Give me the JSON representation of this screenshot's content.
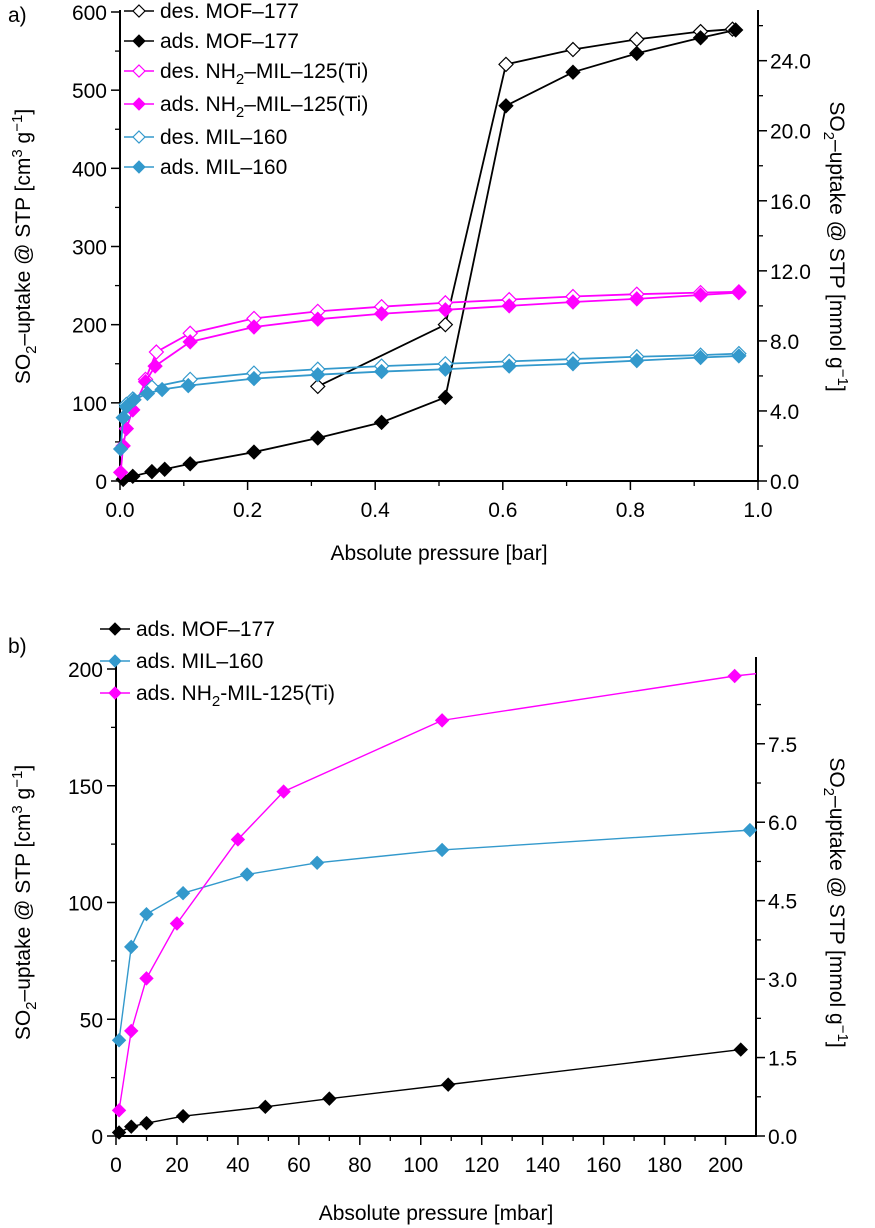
{
  "chart_data": [
    {
      "panel": "a)",
      "type": "line",
      "xlabel": "Absolute pressure [bar]",
      "ylabel": "SO2–uptake @ STP [cm3 g−1]",
      "ylabel_parts": {
        "pre": "SO",
        "sub": "2",
        "mid": "–uptake @ STP [cm",
        "sup1": "3",
        "mid2": " g",
        "sup2": "−1",
        "post": "]"
      },
      "y2label_parts": {
        "pre": "SO",
        "sub": "2",
        "mid": "–uptake @ STP [mmol g",
        "sup": "−1",
        "post": "]"
      },
      "xlim": [
        0,
        1.0
      ],
      "ylim": [
        0,
        600
      ],
      "y2lim": [
        0,
        26.78
      ],
      "xticks": [
        "0.0",
        "0.2",
        "0.4",
        "0.6",
        "0.8",
        "1.0"
      ],
      "xtick_values": [
        0,
        0.2,
        0.4,
        0.6,
        0.8,
        1.0
      ],
      "yticks": [
        "0",
        "100",
        "200",
        "300",
        "400",
        "500",
        "600"
      ],
      "ytick_values": [
        0,
        100,
        200,
        300,
        400,
        500,
        600
      ],
      "y2ticks": [
        "0.0",
        "4.0",
        "8.0",
        "12.0",
        "16.0",
        "20.0",
        "24.0"
      ],
      "y2tick_values": [
        0,
        4,
        8,
        12,
        16,
        20,
        24
      ],
      "legend_position": "top-left",
      "series": [
        {
          "name": "des. MOF–177",
          "label_parts": {
            "pre": "des. MOF–177"
          },
          "color": "#000000",
          "marker": "open-diamond",
          "x": [
            0.96,
            0.91,
            0.81,
            0.71,
            0.605,
            0.51,
            0.31
          ],
          "y": [
            578,
            575,
            565,
            552,
            533,
            200,
            121
          ]
        },
        {
          "name": "ads. MOF–177",
          "label_parts": {
            "pre": "ads. MOF–177"
          },
          "color": "#000000",
          "marker": "filled-diamond",
          "x": [
            0.005,
            0.02,
            0.05,
            0.07,
            0.11,
            0.21,
            0.31,
            0.41,
            0.51,
            0.605,
            0.71,
            0.81,
            0.91,
            0.965
          ],
          "y": [
            2,
            6,
            12,
            15,
            22,
            37,
            55,
            75,
            107,
            480,
            523,
            547,
            567,
            577
          ]
        },
        {
          "name": "des. NH2–MIL–125(Ti)",
          "label_parts": {
            "pre": "des. NH",
            "sub": "2",
            "post": "–MIL–125(Ti)"
          },
          "color": "#ff00ff",
          "marker": "open-diamond",
          "x": [
            0.97,
            0.91,
            0.81,
            0.71,
            0.61,
            0.51,
            0.41,
            0.31,
            0.21,
            0.11,
            0.057,
            0.04
          ],
          "y": [
            242,
            241,
            239,
            236,
            232,
            228,
            223,
            217,
            208,
            189,
            165,
            130
          ]
        },
        {
          "name": "ads. NH2–MIL–125(Ti)",
          "label_parts": {
            "pre": "ads. NH",
            "sub": "2",
            "post": "–MIL–125(Ti)"
          },
          "color": "#ff00ff",
          "marker": "filled-diamond",
          "x": [
            0.001,
            0.005,
            0.01,
            0.02,
            0.04,
            0.055,
            0.11,
            0.21,
            0.31,
            0.41,
            0.51,
            0.61,
            0.71,
            0.81,
            0.91,
            0.97
          ],
          "y": [
            11,
            45,
            67,
            91,
            127,
            147,
            178,
            197,
            207,
            214,
            219,
            224,
            229,
            233,
            238,
            241
          ]
        },
        {
          "name": "des. MIL–160",
          "label_parts": {
            "pre": "des. MIL–160"
          },
          "color": "#3399cc",
          "marker": "open-diamond",
          "x": [
            0.97,
            0.91,
            0.81,
            0.71,
            0.61,
            0.51,
            0.41,
            0.31,
            0.21,
            0.11,
            0.05,
            0.02,
            0.01
          ],
          "y": [
            163,
            161,
            159,
            156,
            153,
            150,
            147,
            143,
            138,
            130,
            120,
            105,
            98
          ]
        },
        {
          "name": "ads. MIL–160",
          "label_parts": {
            "pre": "ads. MIL–160"
          },
          "color": "#3399cc",
          "marker": "filled-diamond",
          "x": [
            0.001,
            0.005,
            0.01,
            0.022,
            0.043,
            0.066,
            0.107,
            0.21,
            0.31,
            0.41,
            0.51,
            0.61,
            0.71,
            0.81,
            0.91,
            0.97
          ],
          "y": [
            41,
            81,
            95,
            104,
            112,
            117,
            122,
            131,
            136,
            140,
            143,
            147,
            150,
            154,
            158,
            160
          ]
        }
      ]
    },
    {
      "panel": "b)",
      "type": "line",
      "xlabel": "Absolute pressure [mbar]",
      "ylabel": "SO2–uptake @ STP [cm3 g−1]",
      "ylabel_parts": {
        "pre": "SO",
        "sub": "2",
        "mid": "–uptake @ STP [cm",
        "sup1": "3",
        "mid2": " g",
        "sup2": "−1",
        "post": "]"
      },
      "y2label_parts": {
        "pre": "SO",
        "sub": "2",
        "mid": "–uptake @ STP [mmol g",
        "sup": "−1",
        "post": "]"
      },
      "xlim": [
        0,
        210
      ],
      "ylim": [
        0,
        200
      ],
      "y2lim": [
        0,
        8.93
      ],
      "xticks": [
        "0",
        "20",
        "40",
        "60",
        "80",
        "100",
        "120",
        "140",
        "160",
        "180",
        "200"
      ],
      "xtick_values": [
        0,
        20,
        40,
        60,
        80,
        100,
        120,
        140,
        160,
        180,
        200
      ],
      "yticks": [
        "0",
        "50",
        "100",
        "150",
        "200"
      ],
      "ytick_values": [
        0,
        50,
        100,
        150,
        200
      ],
      "y2ticks": [
        "0.0",
        "1.5",
        "3.0",
        "4.5",
        "6.0",
        "7.5"
      ],
      "y2tick_values": [
        0,
        1.5,
        3.0,
        4.5,
        6.0,
        7.5
      ],
      "legend_position": "top-left",
      "series": [
        {
          "name": "ads. MOF–177",
          "label_parts": {
            "pre": "ads. MOF–177"
          },
          "color": "#000000",
          "marker": "filled-diamond",
          "x": [
            1,
            5,
            10,
            22,
            49,
            70,
            109,
            205
          ],
          "y": [
            1.5,
            4,
            5.5,
            8.5,
            12.5,
            16,
            22,
            37
          ]
        },
        {
          "name": "ads. MIL–160",
          "label_parts": {
            "pre": "ads. MIL–160"
          },
          "color": "#3399cc",
          "marker": "filled-diamond",
          "x": [
            1,
            5,
            10,
            22,
            43,
            66,
            107,
            208
          ],
          "y": [
            41,
            81,
            95,
            104,
            112,
            117,
            122.5,
            131
          ]
        },
        {
          "name": "ads. NH2-MIL-125(Ti)",
          "label_parts": {
            "pre": "ads. NH",
            "sub": "2",
            "post": "-MIL-125(Ti)"
          },
          "color": "#ff00ff",
          "marker": "filled-diamond",
          "x": [
            1,
            5,
            10,
            20,
            40,
            55,
            107,
            203
          ],
          "y": [
            11,
            45,
            67.5,
            91,
            127,
            147.5,
            178,
            197
          ]
        }
      ]
    }
  ]
}
